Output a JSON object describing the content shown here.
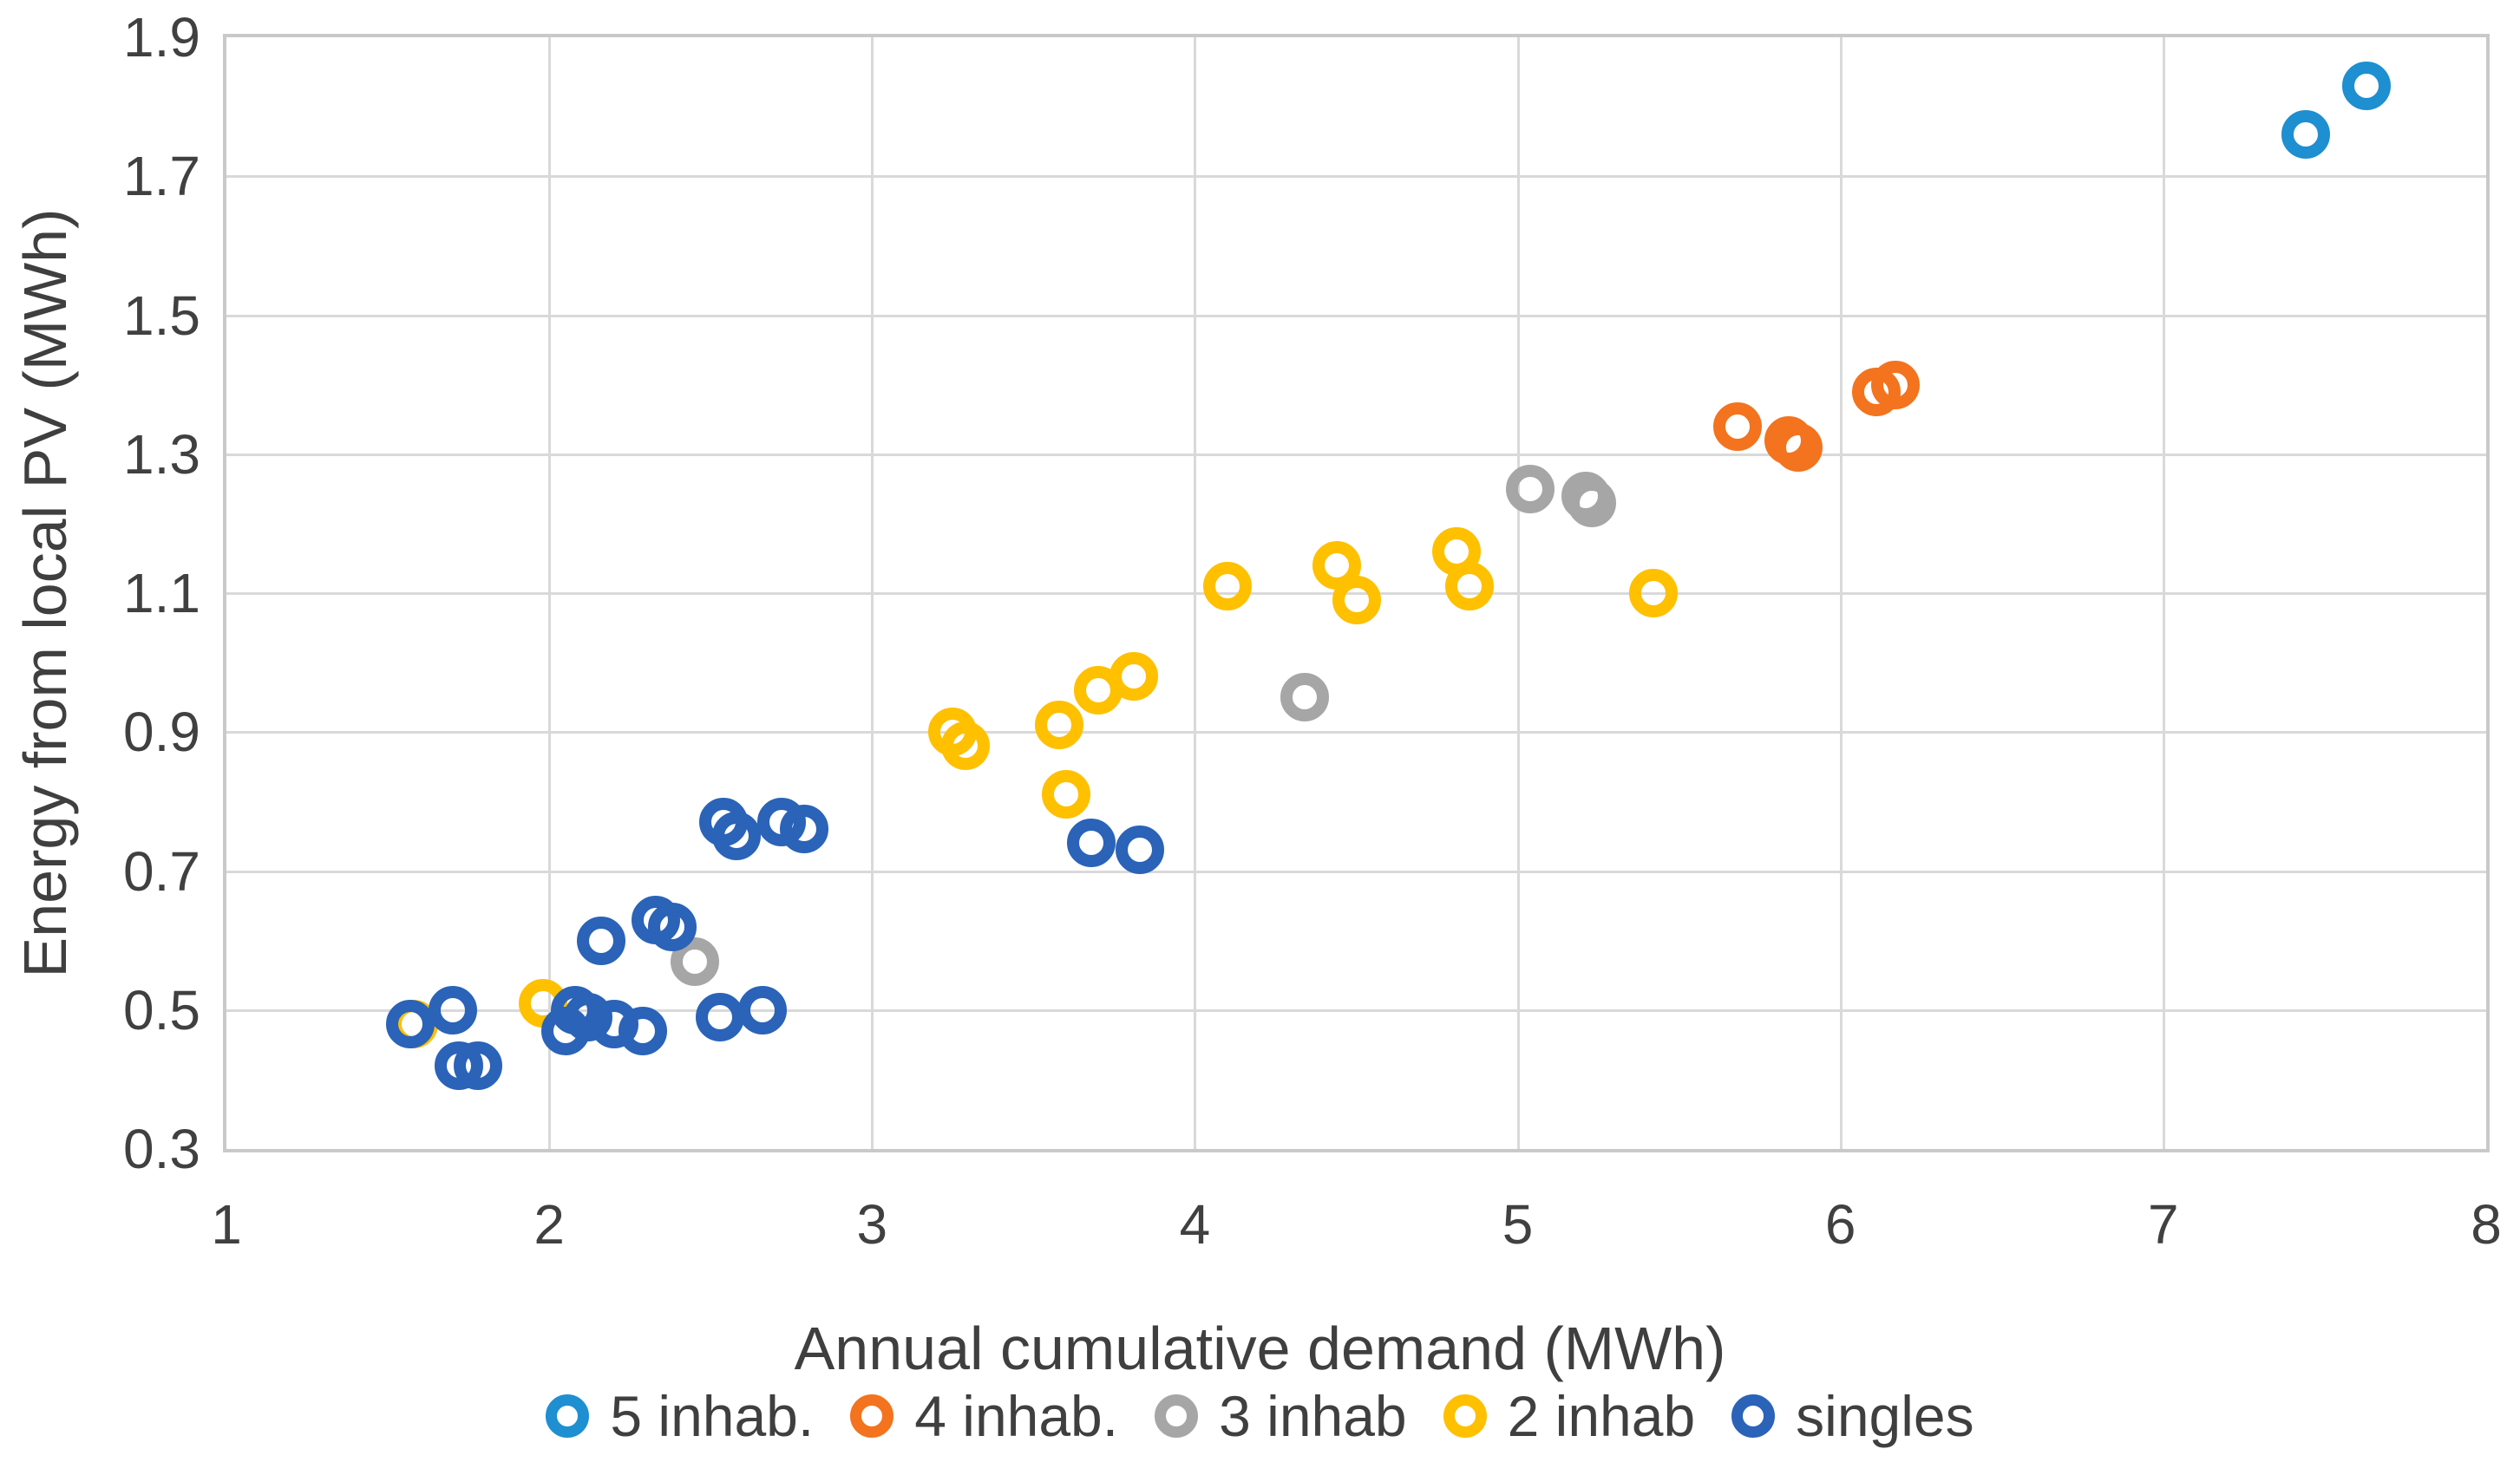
{
  "chart_data": {
    "type": "scatter",
    "title": "",
    "xlabel": "Annual cumulative demand (MWh)",
    "ylabel": "Energy from local PV (MWh)",
    "xlim": [
      1,
      8
    ],
    "ylim": [
      0.3,
      1.9
    ],
    "x_ticks": [
      1,
      2,
      3,
      4,
      5,
      6,
      7,
      8
    ],
    "y_ticks": [
      1.9,
      1.7,
      1.5,
      1.3,
      1.1,
      0.9,
      0.7,
      0.5,
      0.3
    ],
    "grid": true,
    "legend_position": "bottom",
    "marker_style": "open-circle",
    "series": [
      {
        "name": "5 inhab.",
        "color": "#1e8fd0",
        "points": [
          [
            7.44,
            1.76
          ],
          [
            7.63,
            1.83
          ]
        ]
      },
      {
        "name": "4 inhab.",
        "color": "#f3731e",
        "points": [
          [
            5.68,
            1.34
          ],
          [
            5.84,
            1.32
          ],
          [
            5.87,
            1.31
          ],
          [
            6.11,
            1.39
          ],
          [
            6.17,
            1.4
          ]
        ]
      },
      {
        "name": "3 inhab",
        "color": "#a6a6a6",
        "points": [
          [
            2.45,
            0.57
          ],
          [
            4.34,
            0.95
          ],
          [
            5.04,
            1.25
          ],
          [
            5.21,
            1.24
          ],
          [
            5.23,
            1.23
          ]
        ]
      },
      {
        "name": "2 inhab",
        "color": "#ffc000",
        "points": [
          [
            1.58,
            0.48
          ],
          [
            1.98,
            0.51
          ],
          [
            3.25,
            0.9
          ],
          [
            3.29,
            0.88
          ],
          [
            3.58,
            0.91
          ],
          [
            3.6,
            0.81
          ],
          [
            3.7,
            0.96
          ],
          [
            3.81,
            0.98
          ],
          [
            4.1,
            1.11
          ],
          [
            4.44,
            1.14
          ],
          [
            4.5,
            1.09
          ],
          [
            4.81,
            1.16
          ],
          [
            4.85,
            1.11
          ],
          [
            5.42,
            1.1
          ]
        ]
      },
      {
        "name": "singles",
        "color": "#2a63b8",
        "points": [
          [
            1.57,
            0.48
          ],
          [
            1.7,
            0.5
          ],
          [
            1.72,
            0.42
          ],
          [
            1.78,
            0.42
          ],
          [
            2.05,
            0.47
          ],
          [
            2.08,
            0.5
          ],
          [
            2.12,
            0.49
          ],
          [
            2.16,
            0.6
          ],
          [
            2.2,
            0.48
          ],
          [
            2.29,
            0.47
          ],
          [
            2.33,
            0.63
          ],
          [
            2.38,
            0.62
          ],
          [
            2.53,
            0.49
          ],
          [
            2.54,
            0.77
          ],
          [
            2.58,
            0.75
          ],
          [
            2.66,
            0.5
          ],
          [
            2.72,
            0.77
          ],
          [
            2.79,
            0.76
          ],
          [
            3.68,
            0.74
          ],
          [
            3.83,
            0.73
          ]
        ]
      }
    ],
    "colors": {
      "gridline": "#d9d9d9",
      "plot_border": "#c9c9c9",
      "tick_text": "#404040",
      "axis_title_text": "#3f3f3f"
    }
  }
}
